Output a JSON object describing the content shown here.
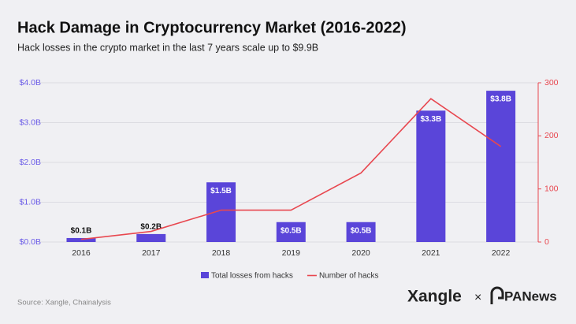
{
  "chart_data": {
    "type": "bar",
    "title": "Hack Damage in Cryptocurrency Market (2016-2022)",
    "subtitle": "Hack losses in the crypto market in the last 7 years scale up to $9.9B",
    "categories": [
      "2016",
      "2017",
      "2018",
      "2019",
      "2020",
      "2021",
      "2022"
    ],
    "series": [
      {
        "name": "Total losses from hacks",
        "type": "bar",
        "color": "#5a45d9",
        "values": [
          0.1,
          0.2,
          1.5,
          0.5,
          0.5,
          3.3,
          3.8
        ],
        "value_labels": [
          "$0.1B",
          "$0.2B",
          "$1.5B",
          "$0.5B",
          "$0.5B",
          "$3.3B",
          "$3.8B"
        ]
      },
      {
        "name": "Number of hacks",
        "type": "line",
        "axis": "y2",
        "color": "#e8474f",
        "values": [
          5,
          20,
          60,
          60,
          130,
          270,
          180
        ]
      }
    ],
    "ylim": [
      0,
      4
    ],
    "yticks": [
      {
        "value": 0,
        "label": "$0.0B"
      },
      {
        "value": 1,
        "label": "$1.0B"
      },
      {
        "value": 2,
        "label": "$2.0B"
      },
      {
        "value": 3,
        "label": "$3.0B"
      },
      {
        "value": 4,
        "label": "$4.0B"
      }
    ],
    "y2lim": [
      0,
      300
    ],
    "y2ticks": [
      0,
      100,
      200,
      300
    ],
    "grid": true,
    "legend": "bottom",
    "source": "Source: Xangle, Chainalysis"
  },
  "branding": {
    "left": "Xangle",
    "separator": "×",
    "right": "PANews"
  }
}
